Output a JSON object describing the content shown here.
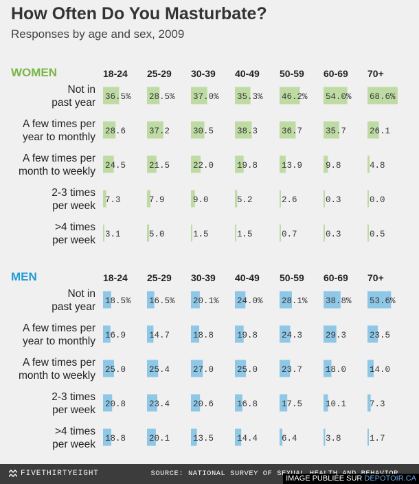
{
  "title": "How Often Do You Masturbate?",
  "subtitle": "Responses by age and sex, 2009",
  "footer": {
    "brand": "FIVETHIRTYEIGHT",
    "source": "SOURCE: NATIONAL SURVEY OF SEXUAL HEALTH AND BEHAVIOR"
  },
  "credit": {
    "text": "IMAGE PUBLIÉE SUR ",
    "link": "DEPOTOIR.CA"
  },
  "colors": {
    "women": "#7ab648",
    "women_bar": "#bfdba4",
    "men": "#1e9bd7",
    "men_bar": "#8fc7e6"
  },
  "chart_data": [
    {
      "type": "table",
      "group": "WOMEN",
      "categories": [
        "18-24",
        "25-29",
        "30-39",
        "40-49",
        "50-59",
        "60-69",
        "70+"
      ],
      "rows": [
        {
          "label": [
            "Not in",
            "past year"
          ],
          "values": [
            "36.5%",
            "28.5%",
            "37.0%",
            "35.3%",
            "46.2%",
            "54.0%",
            "68.6%"
          ]
        },
        {
          "label": [
            "A few times per",
            "year to monthly"
          ],
          "values": [
            "28.6",
            "37.2",
            "30.5",
            "38.3",
            "36.7",
            "35.7",
            "26.1"
          ]
        },
        {
          "label": [
            "A few times per",
            "month to weekly"
          ],
          "values": [
            "24.5",
            "21.5",
            "22.0",
            "19.8",
            "13.9",
            "9.8",
            "4.8"
          ]
        },
        {
          "label": [
            "2-3 times",
            "per week"
          ],
          "values": [
            "7.3",
            "7.9",
            "9.0",
            "5.2",
            "2.6",
            "0.3",
            "0.0"
          ]
        },
        {
          "label": [
            ">4 times",
            "per week"
          ],
          "values": [
            "3.1",
            "5.0",
            "1.5",
            "1.5",
            "0.7",
            "0.3",
            "0.5"
          ]
        }
      ]
    },
    {
      "type": "table",
      "group": "MEN",
      "categories": [
        "18-24",
        "25-29",
        "30-39",
        "40-49",
        "50-59",
        "60-69",
        "70+"
      ],
      "rows": [
        {
          "label": [
            "Not in",
            "past year"
          ],
          "values": [
            "18.5%",
            "16.5%",
            "20.1%",
            "24.0%",
            "28.1%",
            "38.8%",
            "53.6%"
          ]
        },
        {
          "label": [
            "A few times per",
            "year to monthly"
          ],
          "values": [
            "16.9",
            "14.7",
            "18.8",
            "19.8",
            "24.3",
            "29.3",
            "23.5"
          ]
        },
        {
          "label": [
            "A few times per",
            "month to weekly"
          ],
          "values": [
            "25.0",
            "25.4",
            "27.0",
            "25.0",
            "23.7",
            "18.0",
            "14.0"
          ]
        },
        {
          "label": [
            "2-3 times",
            "per week"
          ],
          "values": [
            "20.8",
            "23.4",
            "20.6",
            "16.8",
            "17.5",
            "10.1",
            "7.3"
          ]
        },
        {
          "label": [
            ">4 times",
            "per week"
          ],
          "values": [
            "18.8",
            "20.1",
            "13.5",
            "14.4",
            "6.4",
            "3.8",
            "1.7"
          ]
        }
      ]
    }
  ]
}
